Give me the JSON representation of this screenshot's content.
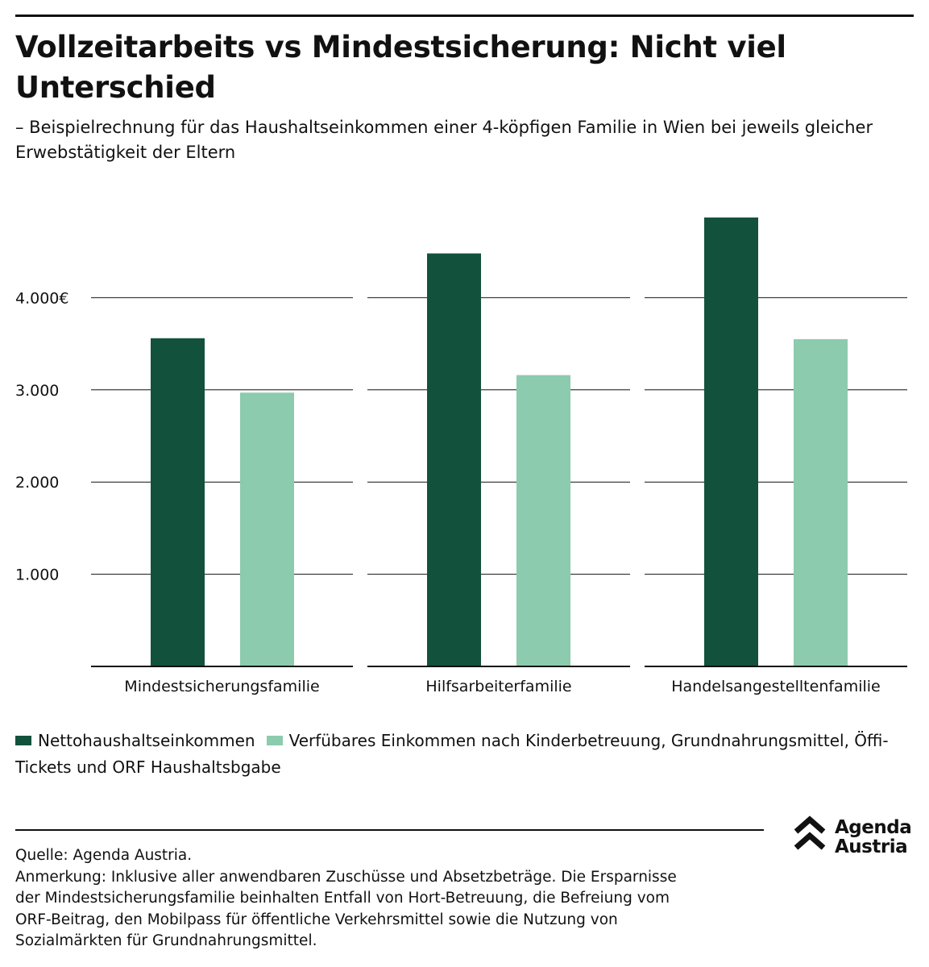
{
  "title": "Vollzeitarbeits vs Mindestsicherung: Nicht viel Unterschied",
  "subtitle": "– Beispielrechnung für das Haushaltseinkommen einer 4-köpfigen Familie in Wien bei jeweils gleicher Erwebstätigkeit der Eltern",
  "chart_data": {
    "type": "bar",
    "categories": [
      "Mindestsicherungsfamilie",
      "Hilfsarbeiterfamilie",
      "Handelsangestelltenfamilie"
    ],
    "series": [
      {
        "name": "Nettohaushaltseinkommen",
        "color": "#12523c",
        "values": [
          3560,
          4480,
          4870
        ]
      },
      {
        "name": "Verfübares Einkommen nach Kinderbetreuung, Grundnahrungsmittel, Öffi-Tickets und ORF Haushaltsbgabe",
        "color": "#8ccbad",
        "values": [
          2970,
          3160,
          3550
        ]
      }
    ],
    "yticks": [
      1000,
      2000,
      3000,
      4000
    ],
    "ytick_labels": [
      "1.000",
      "2.000",
      "3.000",
      "4.000€"
    ],
    "ylim": [
      0,
      5000
    ],
    "grid": true,
    "xlabel": "",
    "ylabel": "",
    "legend_position": "bottom"
  },
  "legend": {
    "item1": "Nettohaushaltseinkommen",
    "item2": "Verfübares Einkommen nach Kinderbetreuung, Grundnahrungsmittel, Öffi-Tickets und ORF Haushaltsbgabe",
    "color1": "#12523c",
    "color2": "#8ccbad"
  },
  "logo": {
    "line1": "Agenda",
    "line2": "Austria"
  },
  "notes": {
    "source": "Quelle: Agenda Austria.",
    "line1": "Anmerkung: Inklusive aller anwendbaren Zuschüsse und Absetzbeträge. Die Ersparnisse",
    "line2": "der Mindestsicherungsfamilie beinhalten Entfall von Hort-Betreuung, die Befreiung vom",
    "line3": "ORF-Beitrag, den Mobilpass für öffentliche Verkehrsmittel sowie die Nutzung von",
    "line4": "Sozialmärkten für Grundnahrungsmittel."
  }
}
